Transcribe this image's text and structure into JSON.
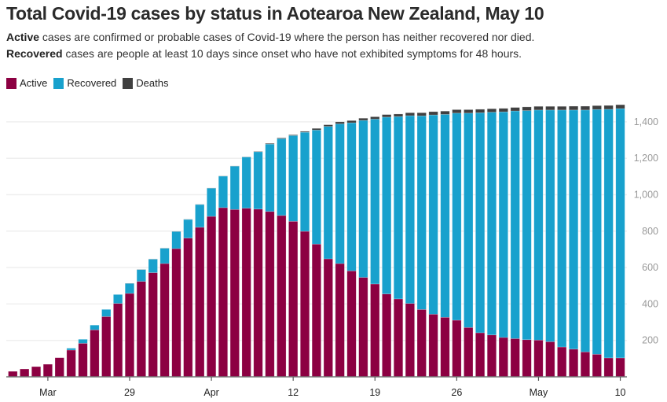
{
  "chart_data": {
    "type": "bar",
    "stacked": true,
    "title": "Total Covid-19 cases by status in Aotearoa New Zealand, May 10",
    "subtitle": [
      {
        "bold": "Active",
        "text": " cases are confirmed or probable cases of Covid-19 where the person has neither recovered nor died."
      },
      {
        "bold": "Recovered",
        "text": " cases are people at least 10 days since onset who have not exhibited symptoms for 48 hours."
      }
    ],
    "legend": [
      "Active",
      "Recovered",
      "Deaths"
    ],
    "legend_position": "top-left",
    "colors": {
      "Active": "#8c0042",
      "Recovered": "#18a1cd",
      "Deaths": "#404040"
    },
    "categories": [
      "Mar 19",
      "Mar 20",
      "Mar 21",
      "Mar 22",
      "Mar 23",
      "Mar 24",
      "Mar 25",
      "Mar 26",
      "Mar 27",
      "Mar 28",
      "Mar 29",
      "Mar 30",
      "Mar 31",
      "Apr 1",
      "Apr 2",
      "Apr 3",
      "Apr 4",
      "Apr 5",
      "Apr 6",
      "Apr 7",
      "Apr 8",
      "Apr 9",
      "Apr 10",
      "Apr 11",
      "Apr 12",
      "Apr 13",
      "Apr 14",
      "Apr 15",
      "Apr 16",
      "Apr 17",
      "Apr 18",
      "Apr 19",
      "Apr 20",
      "Apr 21",
      "Apr 22",
      "Apr 23",
      "Apr 24",
      "Apr 25",
      "Apr 26",
      "Apr 27",
      "Apr 28",
      "Apr 29",
      "Apr 30",
      "May 1",
      "May 2",
      "May 3",
      "May 4",
      "May 5",
      "May 6",
      "May 7",
      "May 8",
      "May 9",
      "May 10"
    ],
    "series": [
      {
        "name": "Active",
        "values": [
          30,
          43,
          56,
          69,
          105,
          147,
          184,
          258,
          331,
          403,
          458,
          524,
          572,
          622,
          704,
          762,
          821,
          881,
          929,
          919,
          926,
          921,
          908,
          886,
          854,
          799,
          729,
          648,
          622,
          582,
          546,
          510,
          455,
          428,
          403,
          370,
          344,
          327,
          311,
          271,
          242,
          230,
          216,
          210,
          204,
          202,
          193,
          164,
          152,
          137,
          124,
          104,
          104
        ]
      },
      {
        "name": "Recovered",
        "values": [
          0,
          0,
          0,
          0,
          0,
          10,
          22,
          26,
          39,
          49,
          55,
          65,
          74,
          84,
          94,
          102,
          125,
          155,
          173,
          238,
          281,
          315,
          370,
          422,
          471,
          544,
          626,
          727,
          767,
          813,
          862,
          905,
          971,
          1001,
          1031,
          1063,
          1094,
          1114,
          1137,
          1177,
          1208,
          1223,
          1239,
          1250,
          1258,
          1263,
          1272,
          1301,
          1313,
          1328,
          1344,
          1365,
          1369
        ]
      },
      {
        "name": "Deaths",
        "values": [
          0,
          0,
          0,
          0,
          0,
          0,
          0,
          0,
          0,
          0,
          1,
          1,
          1,
          1,
          1,
          1,
          1,
          1,
          1,
          1,
          1,
          2,
          4,
          4,
          4,
          5,
          9,
          9,
          11,
          12,
          12,
          13,
          14,
          14,
          16,
          17,
          18,
          18,
          19,
          19,
          19,
          19,
          19,
          19,
          20,
          20,
          20,
          20,
          21,
          21,
          21,
          21,
          21
        ]
      }
    ],
    "x_ticks": [
      {
        "category": "Mar 22",
        "label": "Mar"
      },
      {
        "category": "Mar 29",
        "label": "29"
      },
      {
        "category": "Apr 5",
        "label": "Apr"
      },
      {
        "category": "Apr 12",
        "label": "12"
      },
      {
        "category": "Apr 19",
        "label": "19"
      },
      {
        "category": "Apr 26",
        "label": "26"
      },
      {
        "category": "May 3",
        "label": "May"
      },
      {
        "category": "May 10",
        "label": "10"
      }
    ],
    "y_ticks": [
      {
        "value": 200,
        "label": "200"
      },
      {
        "value": 400,
        "label": "400"
      },
      {
        "value": 600,
        "label": "600"
      },
      {
        "value": 800,
        "label": "800"
      },
      {
        "value": 1000,
        "label": "1,000"
      },
      {
        "value": 1200,
        "label": "1,200"
      },
      {
        "value": 1400,
        "label": "1,400"
      }
    ],
    "ylim": [
      0,
      1400
    ],
    "y_axis_position": "right",
    "grid": true,
    "xlabel": "",
    "ylabel": ""
  }
}
